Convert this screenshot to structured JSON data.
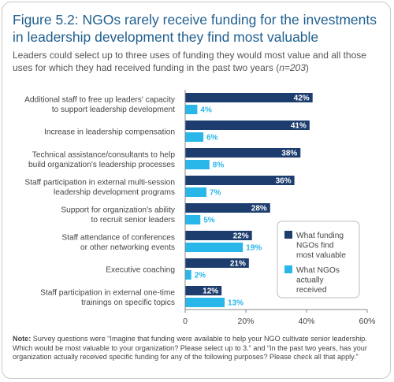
{
  "figure": {
    "title": "Figure 5.2: NGOs rarely receive funding for the investments in leadership development they find most valuable",
    "subtitle_main": "Leaders could select up to three uses of funding they would most value and all those uses for which they had received funding in the past two years (",
    "subtitle_n": "n=203",
    "subtitle_end": ")",
    "note_label": "Note:",
    "note_text": " Survey questions were “Imagine that funding were available to help your NGO cultivate senior leadership. Which would  be most valuable to your organization? Please select up to 3.” and “In the past two years, has your organization actually received specific funding for any of the following purposes? Please check all that apply.”"
  },
  "colors": {
    "title": "#1f5f8f",
    "series_valuable": "#1c3d6e",
    "series_received": "#29b6e8",
    "axis_line": "#888888",
    "text": "#444444"
  },
  "chart_data": {
    "type": "bar",
    "orientation": "horizontal",
    "categories": [
      [
        "Additional staff to free up leaders' capacity",
        "to support leadership development"
      ],
      [
        "Increase in leadership compensation"
      ],
      [
        "Technical assistance/consultants to help",
        "build organization's leadership processes"
      ],
      [
        "Staff participation in external multi-session",
        "leadership development programs"
      ],
      [
        "Support for organization's ability",
        "to recruit senior leaders"
      ],
      [
        "Staff attendance of conferences",
        "or other networking events"
      ],
      [
        "Executive coaching"
      ],
      [
        "Staff participation in external one-time",
        "trainings on specific topics"
      ]
    ],
    "series": [
      {
        "name": "What funding NGOs find most valuable",
        "values": [
          42,
          41,
          38,
          36,
          28,
          22,
          21,
          12
        ]
      },
      {
        "name": "What NGOs actually received",
        "values": [
          4,
          6,
          8,
          7,
          5,
          19,
          2,
          13
        ]
      }
    ],
    "value_suffix": "%",
    "xlim": [
      0,
      60
    ],
    "xticks": [
      "0",
      "20%",
      "40%",
      "60%"
    ],
    "legend": {
      "placement": "lower-right",
      "labels": [
        [
          "What funding",
          "NGOs find",
          "most valuable"
        ],
        [
          "What NGOs",
          "actually",
          "received"
        ]
      ]
    },
    "grid": false
  }
}
